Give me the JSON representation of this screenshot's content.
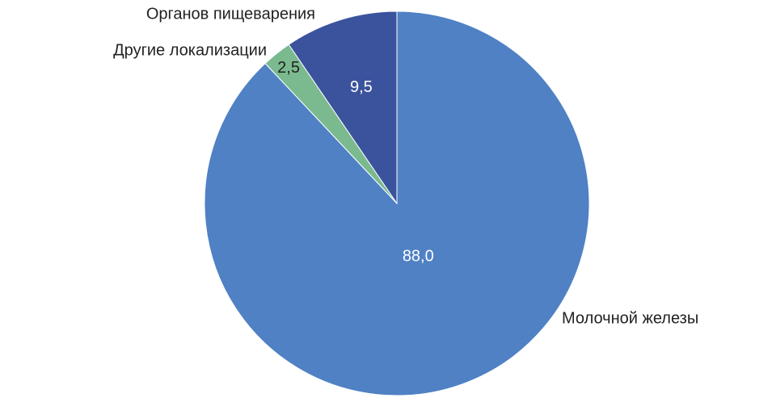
{
  "chart_data": {
    "type": "pie",
    "categories": [
      "Молочной железы",
      "Другие локализации",
      "Органов пищеварения"
    ],
    "values": [
      88.0,
      2.5,
      9.5
    ],
    "value_labels": [
      "88,0",
      "2,5",
      "9,5"
    ],
    "colors": [
      "#4f81c4",
      "#7aba8e",
      "#3b539d"
    ]
  }
}
